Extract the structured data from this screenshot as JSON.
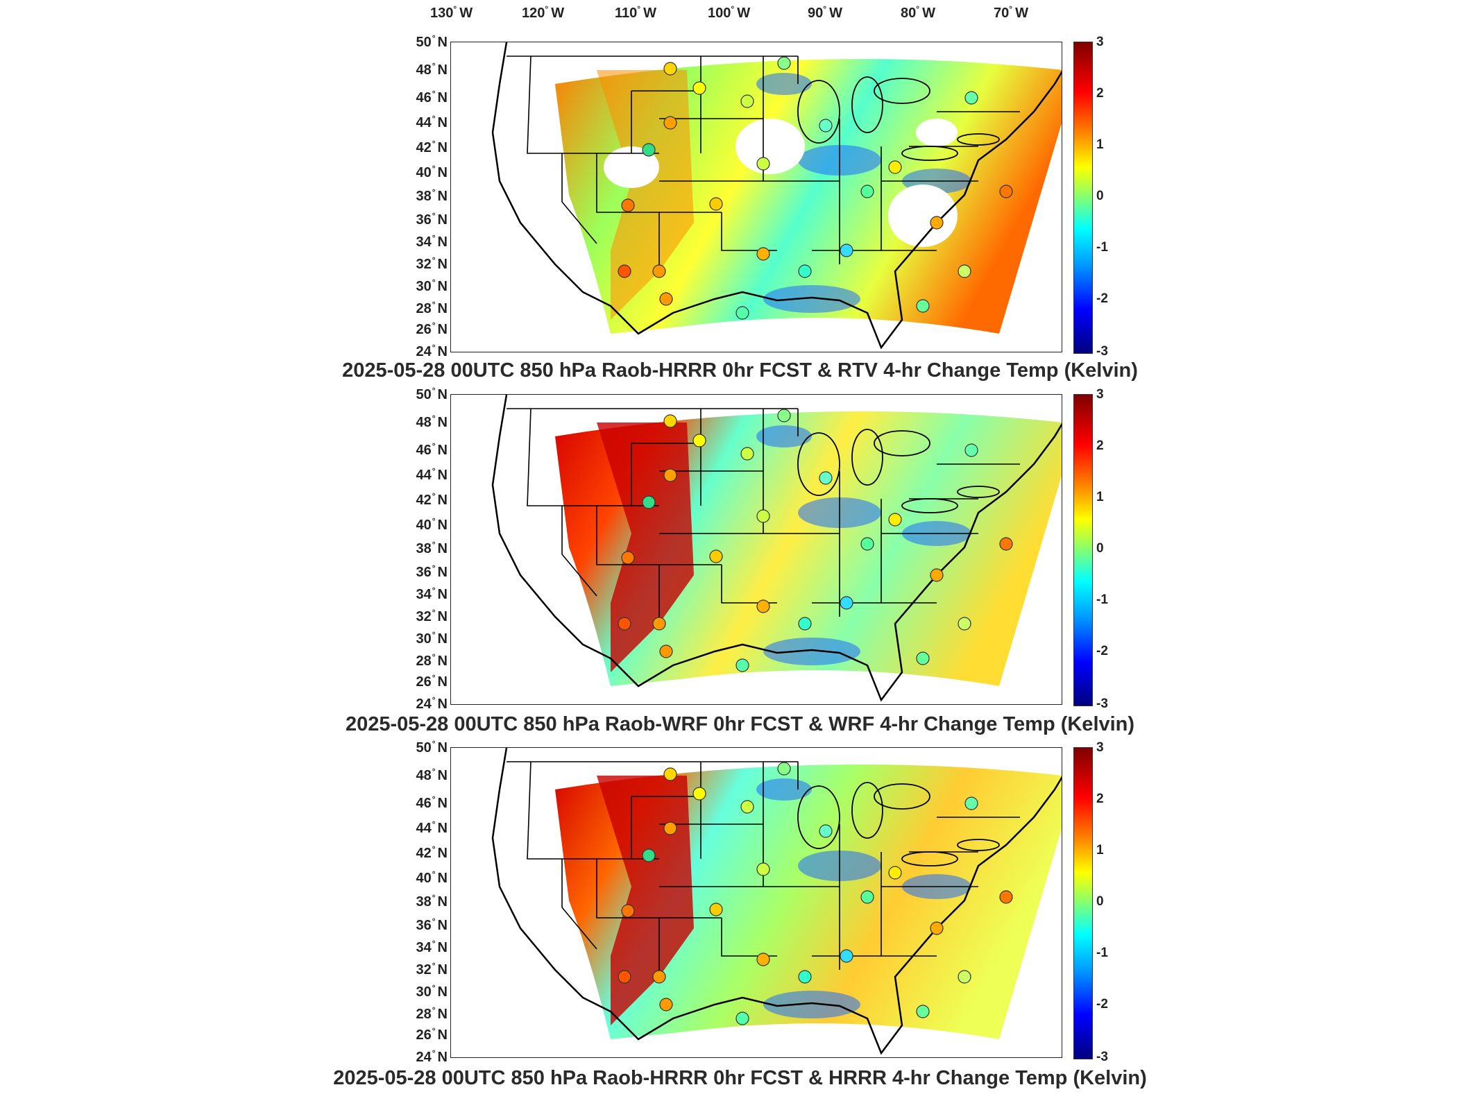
{
  "lon_axis": [
    "130",
    "120",
    "110",
    "100",
    "90",
    "80",
    "70"
  ],
  "lon_suffix": "W",
  "lat_axis": [
    "50",
    "48",
    "46",
    "44",
    "42",
    "40",
    "38",
    "36",
    "34",
    "32",
    "30",
    "28",
    "26",
    "24"
  ],
  "lat_suffix": "N",
  "degree_symbol": "°",
  "colorbar": {
    "ticks": [
      "3",
      "2",
      "1",
      "0",
      "-1",
      "-2",
      "-3"
    ],
    "min": -3,
    "max": 3,
    "colors": [
      "#00007f",
      "#0000ff",
      "#0096ff",
      "#00ffff",
      "#9cff5a",
      "#ffff00",
      "#ff8c00",
      "#ff0000",
      "#7f0000"
    ]
  },
  "panels": [
    {
      "title": "2025-05-28 00UTC 850 hPa Raob-HRRR 0hr FCST & RTV 4-hr Change Temp (Kelvin)"
    },
    {
      "title": "2025-05-28 00UTC 850 hPa Raob-WRF 0hr FCST & WRF 4-hr Change Temp (Kelvin)"
    },
    {
      "title": "2025-05-28 00UTC 850 hPa Raob-HRRR 0hr FCST & HRRR 4-hr Change Temp (Kelvin)"
    }
  ]
}
